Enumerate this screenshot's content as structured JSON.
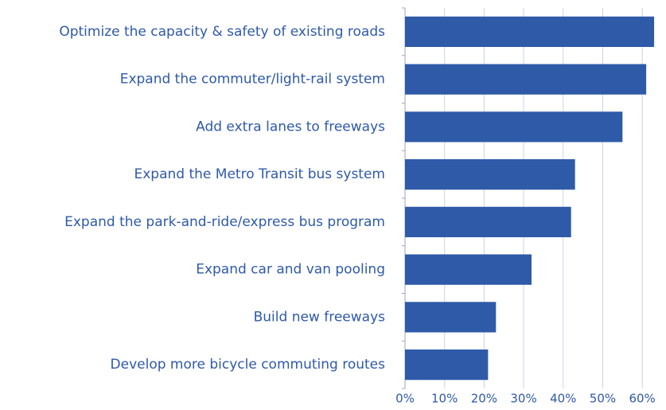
{
  "chart_data": {
    "type": "bar",
    "orientation": "horizontal",
    "categories": [
      "Optimize the capacity & safety of existing roads",
      "Expand the commuter/light-rail system",
      "Add extra lanes to freeways",
      "Expand the Metro Transit bus system",
      "Expand the park-and-ride/express bus program",
      "Expand car and van pooling",
      "Build new freeways",
      "Develop more bicycle commuting routes"
    ],
    "values": [
      63,
      61,
      55,
      43,
      42,
      32,
      23,
      21
    ],
    "color": "#2f5aa8",
    "xlim": [
      0,
      65
    ],
    "xticks": [
      {
        "value": 0,
        "label": "0%"
      },
      {
        "value": 10,
        "label": "10%"
      },
      {
        "value": 20,
        "label": "20%"
      },
      {
        "value": 30,
        "label": "30%"
      },
      {
        "value": 40,
        "label": "40%"
      },
      {
        "value": 50,
        "label": "50%"
      },
      {
        "value": 60,
        "label": "60%"
      }
    ],
    "grid": true
  }
}
